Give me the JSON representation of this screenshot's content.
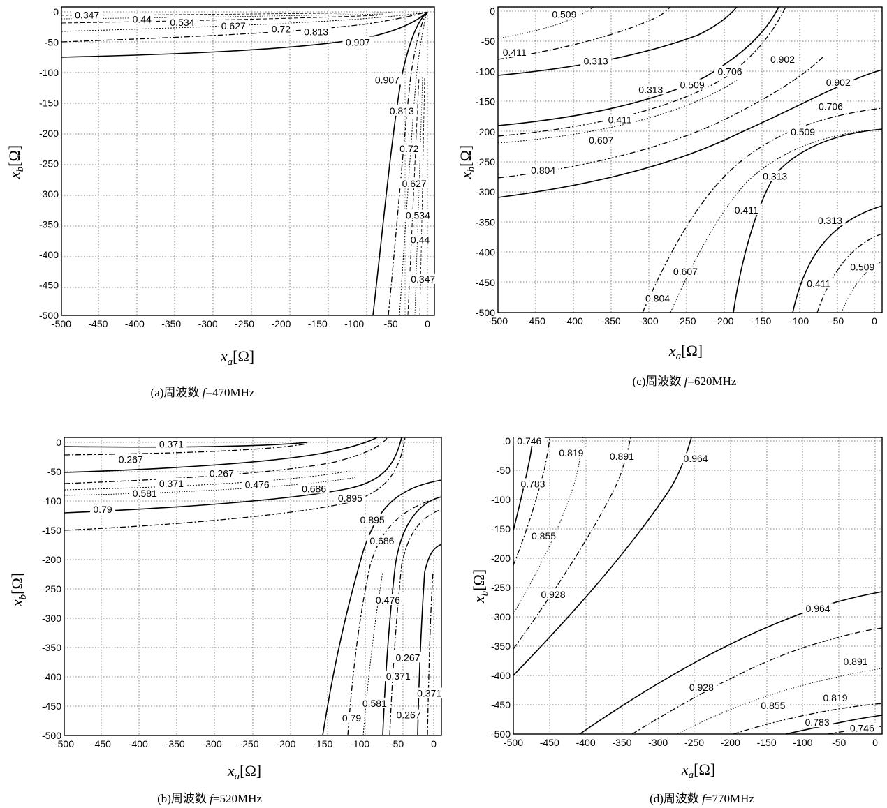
{
  "chart_data": [
    {
      "id": "a",
      "type": "contour",
      "caption": "(a)周波数 f=470MHz",
      "caption_prefix": "(a)周波数 ",
      "caption_f": "f",
      "caption_suffix": "=470MHz",
      "xlabel": "x_a[Ω]",
      "ylabel": "x_b[Ω]",
      "xlabel_main": "x",
      "xlabel_sub": "a",
      "xlabel_unit": "[Ω]",
      "ylabel_main": "x",
      "ylabel_sub": "b",
      "ylabel_unit": "[Ω]",
      "xlim": [
        -500,
        10
      ],
      "ylim": [
        -500,
        5
      ],
      "xticks": [
        -500,
        -450,
        -400,
        -350,
        -300,
        -250,
        -200,
        -150,
        -100,
        -50,
        0
      ],
      "yticks": [
        0,
        -50,
        -100,
        -150,
        -200,
        -250,
        -300,
        -350,
        -400,
        -450,
        -500
      ],
      "grid": true,
      "levels": [
        "0.347",
        "0.44",
        "0.534",
        "0.627",
        "0.72",
        "0.813",
        "0.907"
      ],
      "contour_labels": [
        {
          "text": "0.347",
          "x": -465,
          "y": -5
        },
        {
          "text": "0.44",
          "x": -390,
          "y": -12
        },
        {
          "text": "0.534",
          "x": -335,
          "y": -17
        },
        {
          "text": "0.627",
          "x": -265,
          "y": -23
        },
        {
          "text": "0.72",
          "x": -200,
          "y": -28
        },
        {
          "text": "0.813",
          "x": -152,
          "y": -33
        },
        {
          "text": "0.907",
          "x": -95,
          "y": -50
        },
        {
          "text": "0.907",
          "x": -55,
          "y": -112
        },
        {
          "text": "0.813",
          "x": -35,
          "y": -163
        },
        {
          "text": "0.72",
          "x": -25,
          "y": -225
        },
        {
          "text": "0.627",
          "x": -18,
          "y": -283
        },
        {
          "text": "0.534",
          "x": -13,
          "y": -335
        },
        {
          "text": "0.44",
          "x": -10,
          "y": -375
        },
        {
          "text": "0.347",
          "x": -6,
          "y": -440
        }
      ]
    },
    {
      "id": "c",
      "type": "contour",
      "caption": "(c)周波数 f=620MHz",
      "caption_prefix": "(c)周波数 ",
      "caption_f": "f",
      "caption_suffix": "=620MHz",
      "xlabel": "x_a[Ω]",
      "ylabel": "x_b[Ω]",
      "xlabel_main": "x",
      "xlabel_sub": "a",
      "xlabel_unit": "[Ω]",
      "ylabel_main": "x",
      "ylabel_sub": "b",
      "ylabel_unit": "[Ω]",
      "xlim": [
        -500,
        10
      ],
      "ylim": [
        -500,
        5
      ],
      "xticks": [
        -500,
        -450,
        -400,
        -350,
        -300,
        -250,
        -200,
        -150,
        -100,
        -50,
        0
      ],
      "yticks": [
        0,
        -50,
        -100,
        -150,
        -200,
        -250,
        -300,
        -350,
        -400,
        -450,
        -500
      ],
      "grid": true,
      "levels": [
        "0.313",
        "0.411",
        "0.509",
        "0.607",
        "0.706",
        "0.804",
        "0.902"
      ],
      "contour_labels": [
        {
          "text": "0.509",
          "x": -412,
          "y": -5
        },
        {
          "text": "0.411",
          "x": -478,
          "y": -68
        },
        {
          "text": "0.313",
          "x": -370,
          "y": -83
        },
        {
          "text": "0.902",
          "x": -122,
          "y": -80
        },
        {
          "text": "0.706",
          "x": -192,
          "y": -100
        },
        {
          "text": "0.509",
          "x": -242,
          "y": -122
        },
        {
          "text": "0.313",
          "x": -297,
          "y": -130
        },
        {
          "text": "0.902",
          "x": -48,
          "y": -118
        },
        {
          "text": "0.706",
          "x": -58,
          "y": -158
        },
        {
          "text": "0.411",
          "x": -338,
          "y": -180
        },
        {
          "text": "0.509",
          "x": -95,
          "y": -200
        },
        {
          "text": "0.607",
          "x": -363,
          "y": -214
        },
        {
          "text": "0.804",
          "x": -440,
          "y": -264
        },
        {
          "text": "0.313",
          "x": -132,
          "y": -274
        },
        {
          "text": "0.411",
          "x": -170,
          "y": -330
        },
        {
          "text": "0.313",
          "x": -59,
          "y": -347
        },
        {
          "text": "0.509",
          "x": -16,
          "y": -424
        },
        {
          "text": "0.607",
          "x": -251,
          "y": -432
        },
        {
          "text": "0.411",
          "x": -74,
          "y": -452
        },
        {
          "text": "0.804",
          "x": -288,
          "y": -476
        }
      ]
    },
    {
      "id": "b",
      "type": "contour",
      "caption": "(b)周波数 f=520MHz",
      "caption_prefix": "(b)周波数 ",
      "caption_f": "f",
      "caption_suffix": "=520MHz",
      "xlabel": "x_a[Ω]",
      "ylabel": "x_b[Ω]",
      "xlabel_main": "x",
      "xlabel_sub": "a",
      "xlabel_unit": "[Ω]",
      "ylabel_main": "x",
      "ylabel_sub": "b",
      "ylabel_unit": "[Ω]",
      "xlim": [
        -500,
        10
      ],
      "ylim": [
        -500,
        5
      ],
      "xticks": [
        -500,
        -450,
        -400,
        -350,
        -300,
        -250,
        -200,
        -150,
        -100,
        -50,
        0
      ],
      "yticks": [
        0,
        -50,
        -100,
        -150,
        -200,
        -250,
        -300,
        -350,
        -400,
        -450,
        -500
      ],
      "grid": true,
      "levels": [
        "0.267",
        "0.371",
        "0.476",
        "0.581",
        "0.686",
        "0.79",
        "0.895"
      ],
      "contour_labels": [
        {
          "text": "0.371",
          "x": -355,
          "y": -3
        },
        {
          "text": "0.267",
          "x": -410,
          "y": -29
        },
        {
          "text": "0.267",
          "x": -287,
          "y": -53
        },
        {
          "text": "0.371",
          "x": -355,
          "y": -70
        },
        {
          "text": "0.476",
          "x": -239,
          "y": -72
        },
        {
          "text": "0.686",
          "x": -162,
          "y": -79
        },
        {
          "text": "0.581",
          "x": -391,
          "y": -87
        },
        {
          "text": "0.895",
          "x": -113,
          "y": -95
        },
        {
          "text": "0.79",
          "x": -448,
          "y": -114
        },
        {
          "text": "0.895",
          "x": -83,
          "y": -132
        },
        {
          "text": "0.686",
          "x": -70,
          "y": -168
        },
        {
          "text": "0.476",
          "x": -62,
          "y": -269
        },
        {
          "text": "0.267",
          "x": -35,
          "y": -367
        },
        {
          "text": "0.371",
          "x": -48,
          "y": -399
        },
        {
          "text": "0.371",
          "x": -6,
          "y": -428
        },
        {
          "text": "0.581",
          "x": -80,
          "y": -445
        },
        {
          "text": "0.267",
          "x": -34,
          "y": -465
        },
        {
          "text": "0.79",
          "x": -111,
          "y": -470
        }
      ]
    },
    {
      "id": "d",
      "type": "contour",
      "caption": "(d)周波数 f=770MHz",
      "caption_prefix": "(d)周波数 ",
      "caption_f": "f",
      "caption_suffix": "=770MHz",
      "xlabel": "x_a[Ω]",
      "ylabel": "x_b[Ω]",
      "xlabel_main": "x",
      "xlabel_sub": "a",
      "xlabel_unit": "[Ω]",
      "ylabel_main": "x",
      "ylabel_sub": "b",
      "ylabel_unit": "[Ω]",
      "xlim": [
        -500,
        10
      ],
      "ylim": [
        -500,
        5
      ],
      "xticks": [
        -500,
        -450,
        -400,
        -350,
        -300,
        -250,
        -200,
        -150,
        -100,
        -50,
        0
      ],
      "yticks": [
        0,
        -50,
        -100,
        -150,
        -200,
        -250,
        -300,
        -350,
        -400,
        -450,
        -500
      ],
      "grid": true,
      "levels": [
        "0.746",
        "0.783",
        "0.819",
        "0.855",
        "0.891",
        "0.928",
        "0.964"
      ],
      "contour_labels": [
        {
          "text": "0.746",
          "x": -478,
          "y": 0
        },
        {
          "text": "0.819",
          "x": -420,
          "y": -20
        },
        {
          "text": "0.891",
          "x": -350,
          "y": -26
        },
        {
          "text": "0.964",
          "x": -248,
          "y": -30
        },
        {
          "text": "0.783",
          "x": -473,
          "y": -73
        },
        {
          "text": "0.855",
          "x": -458,
          "y": -162
        },
        {
          "text": "0.928",
          "x": -445,
          "y": -262
        },
        {
          "text": "0.964",
          "x": -79,
          "y": -286
        },
        {
          "text": "0.891",
          "x": -27,
          "y": -376
        },
        {
          "text": "0.928",
          "x": -240,
          "y": -420
        },
        {
          "text": "0.819",
          "x": -55,
          "y": -438
        },
        {
          "text": "0.855",
          "x": -141,
          "y": -451
        },
        {
          "text": "0.783",
          "x": -80,
          "y": -480
        },
        {
          "text": "0.746",
          "x": -18,
          "y": -490
        }
      ]
    }
  ]
}
